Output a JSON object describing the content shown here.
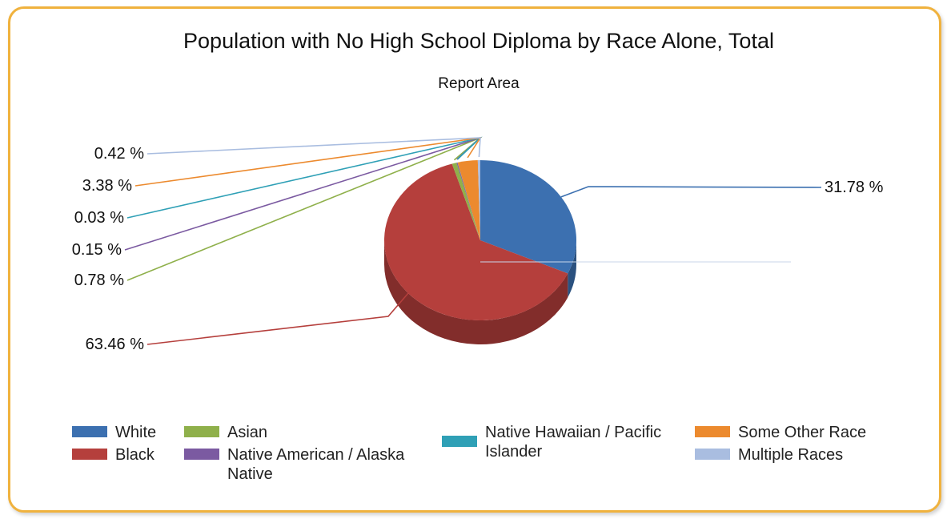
{
  "chart_data": {
    "type": "pie",
    "title": "Population with No High School Diploma by Race Alone, Total",
    "subtitle": "Report Area",
    "legend_position": "bottom",
    "slices": [
      {
        "name": "White",
        "value": 31.78,
        "label": "31.78 %",
        "color": "#3c70b0"
      },
      {
        "name": "Black",
        "value": 63.46,
        "label": "63.46 %",
        "color": "#b53f3c"
      },
      {
        "name": "Asian",
        "value": 0.78,
        "label": "0.78 %",
        "color": "#8fb04b"
      },
      {
        "name": "Native American / Alaska Native",
        "value": 0.15,
        "label": "0.15 %",
        "color": "#7b5aa1"
      },
      {
        "name": "Native Hawaiian / Pacific Islander",
        "value": 0.03,
        "label": "0.03 %",
        "color": "#2fa0b6"
      },
      {
        "name": "Some Other Race",
        "value": 3.38,
        "label": "3.38 %",
        "color": "#ec8a2e"
      },
      {
        "name": "Multiple Races",
        "value": 0.42,
        "label": "0.42 %",
        "color": "#a9bde0"
      }
    ]
  }
}
